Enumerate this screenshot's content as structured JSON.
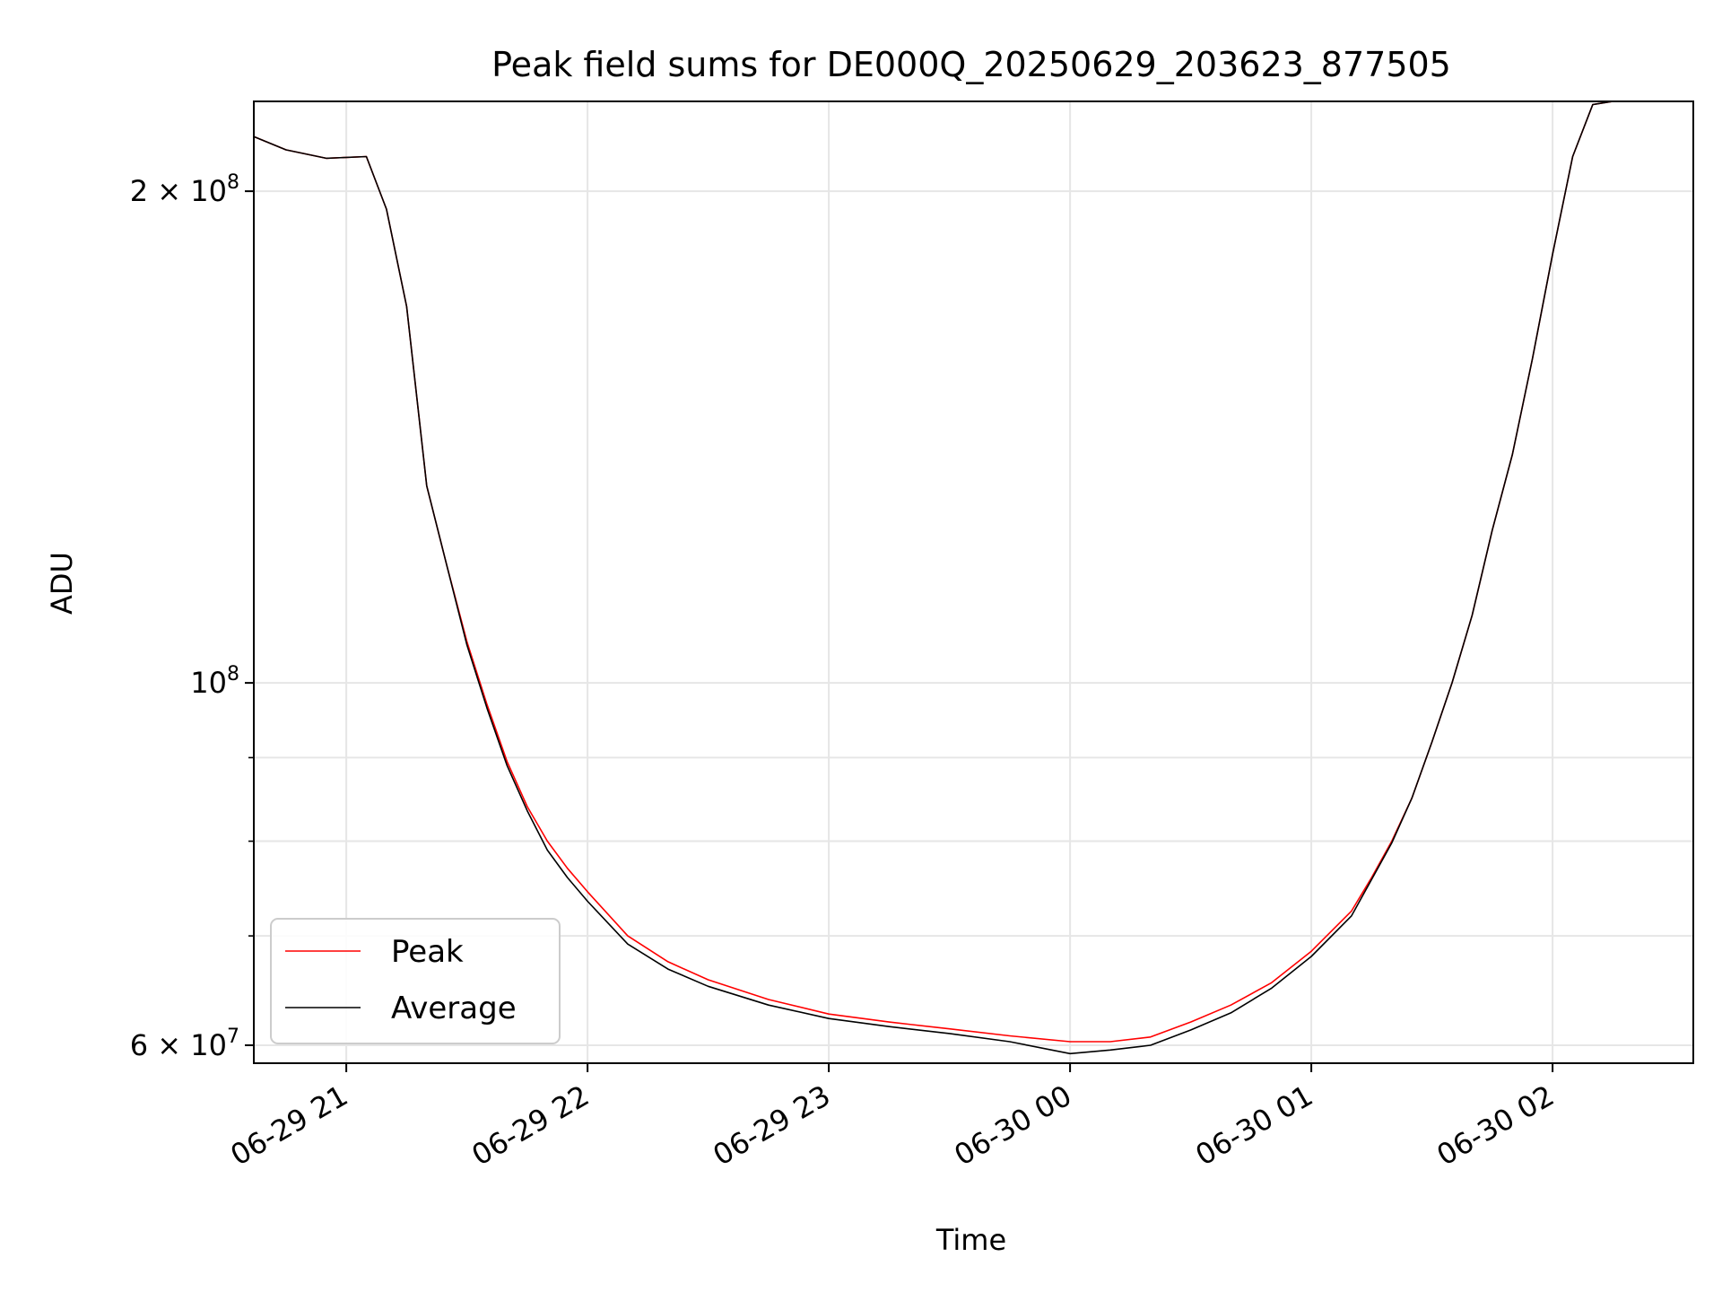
{
  "chart_data": {
    "type": "line",
    "title": "Peak field sums for DE000Q_20250629_203623_877505",
    "xlabel": "Time",
    "ylabel": "ADU",
    "yscale": "log",
    "grid": true,
    "legend_position": "lower-left",
    "xlim": [
      "2025-06-29 20:37",
      "2025-06-30 02:35"
    ],
    "ylim": [
      58500000,
      227000000
    ],
    "x_ticks": [
      "06-29 21",
      "06-29 22",
      "06-29 23",
      "06-30 00",
      "06-30 01",
      "06-30 02"
    ],
    "y_ticks": [
      {
        "value": 60000000,
        "mantissa": "6",
        "exponent": "7"
      },
      {
        "value": 100000000,
        "mantissa": "",
        "exponent": "8"
      },
      {
        "value": 200000000,
        "mantissa": "2",
        "exponent": "8"
      }
    ],
    "series": [
      {
        "name": "Peak",
        "color": "#ff0000",
        "x": [
          "2025-06-29 20:37",
          "2025-06-29 20:45",
          "2025-06-29 20:55",
          "2025-06-29 21:05",
          "2025-06-29 21:10",
          "2025-06-29 21:15",
          "2025-06-29 21:20",
          "2025-06-29 21:25",
          "2025-06-29 21:30",
          "2025-06-29 21:35",
          "2025-06-29 21:40",
          "2025-06-29 21:45",
          "2025-06-29 21:50",
          "2025-06-29 21:55",
          "2025-06-29 22:00",
          "2025-06-29 22:10",
          "2025-06-29 22:20",
          "2025-06-29 22:30",
          "2025-06-29 22:45",
          "2025-06-29 23:00",
          "2025-06-29 23:15",
          "2025-06-29 23:30",
          "2025-06-29 23:45",
          "2025-06-30 00:00",
          "2025-06-30 00:10",
          "2025-06-30 00:20",
          "2025-06-30 00:30",
          "2025-06-30 00:40",
          "2025-06-30 00:50",
          "2025-06-30 01:00",
          "2025-06-30 01:10",
          "2025-06-30 01:15",
          "2025-06-30 01:20",
          "2025-06-30 01:25",
          "2025-06-30 01:30",
          "2025-06-30 01:35",
          "2025-06-30 01:40",
          "2025-06-30 01:45",
          "2025-06-30 01:50",
          "2025-06-30 01:55",
          "2025-06-30 02:00",
          "2025-06-30 02:05",
          "2025-06-30 02:10",
          "2025-06-30 02:15"
        ],
        "values": [
          216000000,
          212000000,
          209500000,
          210000000,
          195000000,
          170000000,
          132000000,
          118000000,
          106000000,
          97000000,
          89500000,
          84000000,
          80000000,
          77000000,
          74500000,
          70000000,
          67500000,
          65800000,
          64000000,
          62700000,
          62000000,
          61400000,
          60800000,
          60300000,
          60300000,
          60700000,
          62000000,
          63500000,
          65500000,
          68500000,
          72500000,
          76000000,
          80000000,
          85000000,
          92000000,
          100000000,
          110000000,
          124000000,
          138000000,
          158000000,
          183000000,
          210000000,
          226000000,
          227000000
        ]
      },
      {
        "name": "Average",
        "color": "#000000",
        "x": [
          "2025-06-29 20:37",
          "2025-06-29 20:45",
          "2025-06-29 20:55",
          "2025-06-29 21:05",
          "2025-06-29 21:10",
          "2025-06-29 21:15",
          "2025-06-29 21:20",
          "2025-06-29 21:25",
          "2025-06-29 21:30",
          "2025-06-29 21:35",
          "2025-06-29 21:40",
          "2025-06-29 21:45",
          "2025-06-29 21:50",
          "2025-06-29 21:55",
          "2025-06-29 22:00",
          "2025-06-29 22:10",
          "2025-06-29 22:20",
          "2025-06-29 22:30",
          "2025-06-29 22:45",
          "2025-06-29 23:00",
          "2025-06-29 23:15",
          "2025-06-29 23:30",
          "2025-06-29 23:45",
          "2025-06-30 00:00",
          "2025-06-30 00:10",
          "2025-06-30 00:20",
          "2025-06-30 00:30",
          "2025-06-30 00:40",
          "2025-06-30 00:50",
          "2025-06-30 01:00",
          "2025-06-30 01:10",
          "2025-06-30 01:15",
          "2025-06-30 01:20",
          "2025-06-30 01:25",
          "2025-06-30 01:30",
          "2025-06-30 01:35",
          "2025-06-30 01:40",
          "2025-06-30 01:45",
          "2025-06-30 01:50",
          "2025-06-30 01:55",
          "2025-06-30 02:00",
          "2025-06-30 02:05",
          "2025-06-30 02:10",
          "2025-06-30 02:15"
        ],
        "values": [
          216000000,
          212000000,
          209500000,
          210000000,
          195000000,
          170000000,
          132000000,
          118000000,
          105500000,
          96500000,
          89000000,
          83500000,
          79000000,
          76000000,
          73500000,
          69200000,
          66800000,
          65200000,
          63500000,
          62300000,
          61600000,
          61000000,
          60300000,
          59300000,
          59600000,
          60000000,
          61300000,
          62800000,
          65000000,
          68000000,
          72000000,
          75800000,
          79800000,
          85000000,
          92000000,
          100000000,
          110000000,
          124000000,
          138000000,
          158000000,
          183000000,
          210000000,
          226000000,
          227000000
        ]
      }
    ]
  }
}
